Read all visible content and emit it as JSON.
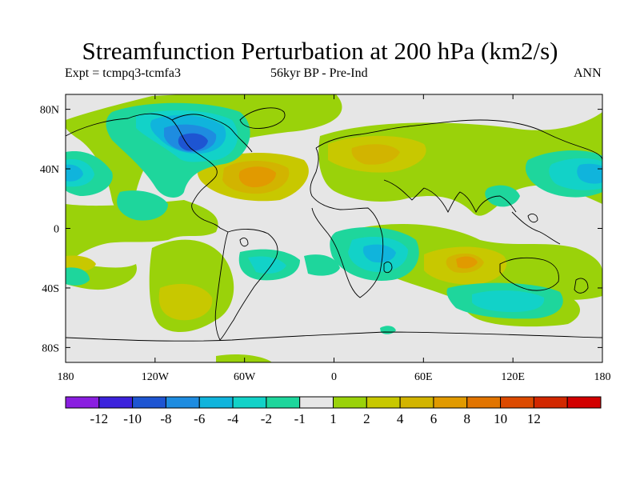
{
  "title": "Streamfunction Perturbation at 200 hPa (km2/s)",
  "subtitle_left": "Expt = tcmpq3-tcmfa3",
  "subtitle_center": "56kyr BP - Pre-Ind",
  "subtitle_right": "ANN",
  "map": {
    "projection": "cylindrical-equidistant",
    "lon_range": [
      -180,
      180
    ],
    "lat_range": [
      -90,
      90
    ],
    "background_color": "#e6e6e6",
    "y_ticks": [
      "80N",
      "40N",
      "0",
      "40S",
      "80S"
    ],
    "x_ticks": [
      "180",
      "120W",
      "60W",
      "0",
      "60E",
      "120E",
      "180"
    ],
    "x_tick_values": [
      -180,
      -120,
      -60,
      0,
      60,
      120,
      180
    ],
    "y_tick_values": [
      80,
      40,
      0,
      -40,
      -80
    ]
  },
  "colorbar": {
    "colors": [
      "#8a1ee0",
      "#3c22dc",
      "#1e55d2",
      "#1e8ce0",
      "#10b4dc",
      "#12d2c8",
      "#1ed69c",
      "#e6e6e6",
      "#9ad20a",
      "#c8c800",
      "#d2b400",
      "#e19a00",
      "#e17400",
      "#dc4a00",
      "#d22800",
      "#d20000"
    ],
    "labels": [
      "-12",
      "-10",
      "-8",
      "-6",
      "-4",
      "-2",
      "-1",
      "1",
      "2",
      "4",
      "6",
      "8",
      "10",
      "12"
    ]
  }
}
